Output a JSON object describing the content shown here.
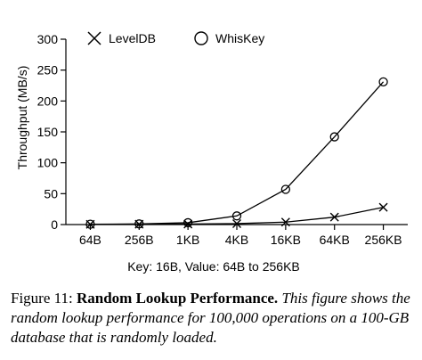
{
  "chart_data": {
    "type": "line",
    "categories": [
      "64B",
      "256B",
      "1KB",
      "4KB",
      "16KB",
      "64KB",
      "256KB"
    ],
    "series": [
      {
        "name": "LevelDB",
        "marker": "x",
        "values": [
          0.3,
          0.5,
          0.8,
          1.5,
          4,
          12,
          28
        ]
      },
      {
        "name": "WhisKey",
        "marker": "o",
        "values": [
          0.5,
          1,
          3,
          14,
          57,
          142,
          231
        ]
      }
    ],
    "ylabel": "Throughput (MB/s)",
    "xlabel": "Key: 16B, Value: 64B to 256KB",
    "ylim": [
      0,
      300
    ],
    "yticks": [
      0,
      50,
      100,
      150,
      200,
      250,
      300
    ],
    "grid": false,
    "legend_position": "top"
  },
  "caption": {
    "number": "Figure 11:",
    "title": "Random Lookup Performance.",
    "description": "This figure shows the random lookup performance for 100,000 operations on a 100-GB database that is randomly loaded."
  },
  "colors": {
    "ink": "#000000",
    "background": "#ffffff"
  }
}
